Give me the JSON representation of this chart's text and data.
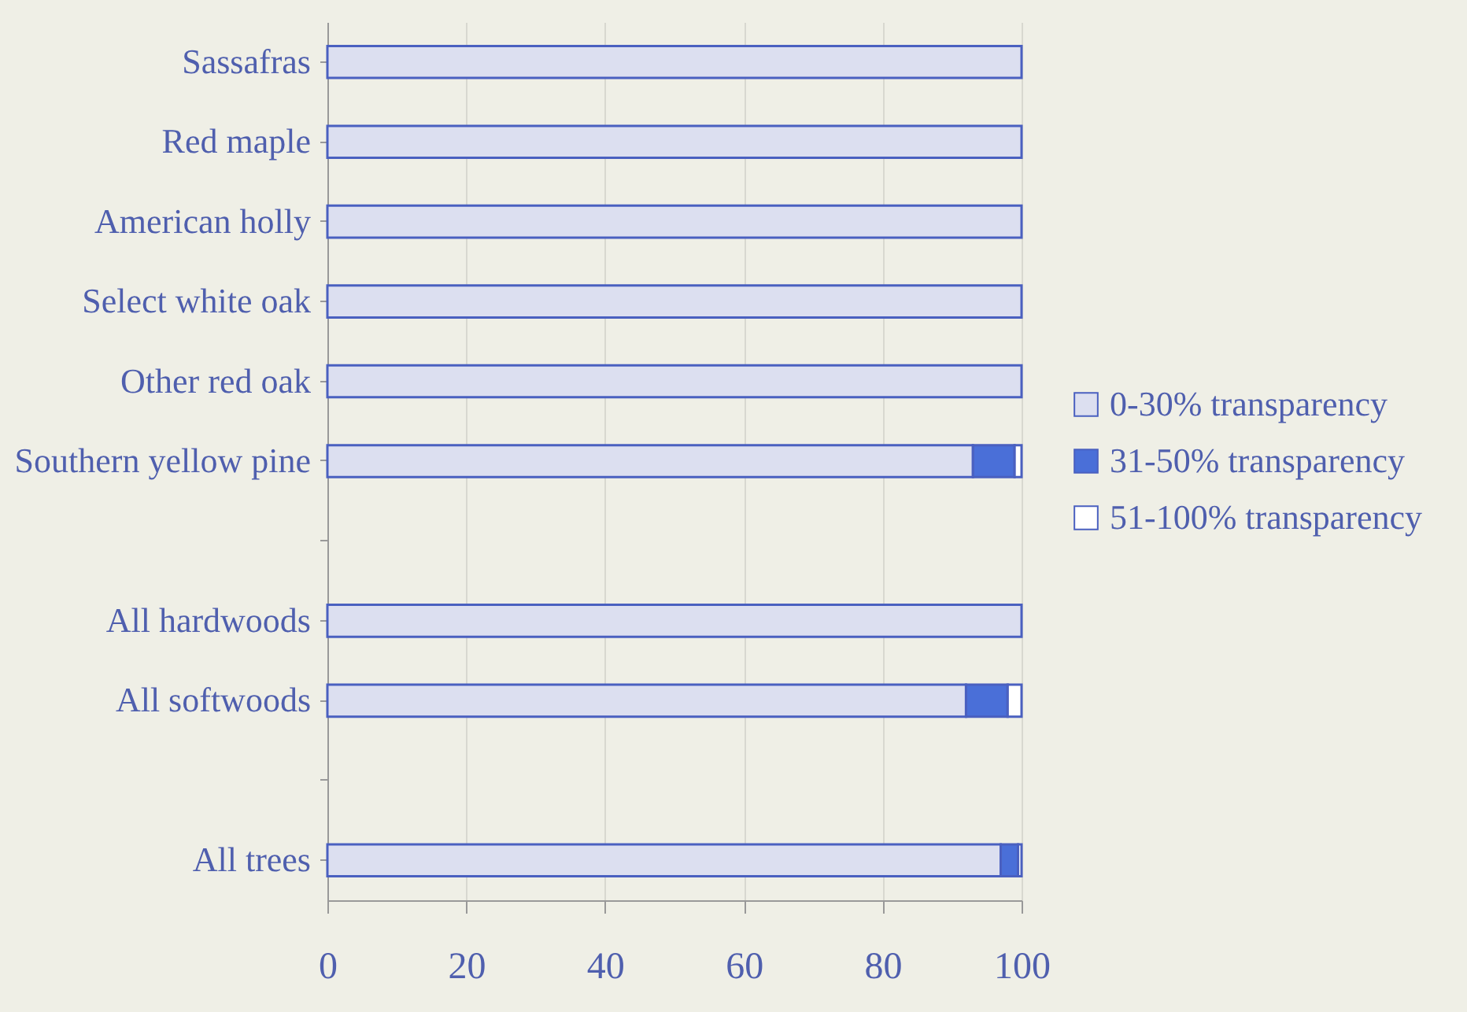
{
  "chart_data": {
    "type": "bar",
    "orientation": "horizontal",
    "stacked": true,
    "categories": [
      "Sassafras",
      "Red maple",
      "American holly",
      "Select white oak",
      "Other red oak",
      "Southern yellow pine",
      null,
      "All hardwoods",
      "All softwoods",
      null,
      "All trees"
    ],
    "series": [
      {
        "name": "0-30% transparency",
        "color": "#dcdff0",
        "values": [
          100,
          100,
          100,
          100,
          100,
          93,
          null,
          100,
          92,
          null,
          97
        ]
      },
      {
        "name": "31-50% transparency",
        "color": "#4a6fd8",
        "values": [
          0,
          0,
          0,
          0,
          0,
          6,
          null,
          0,
          6,
          null,
          2.5
        ]
      },
      {
        "name": "51-100% transparency",
        "color": "#ffffff",
        "values": [
          0,
          0,
          0,
          0,
          0,
          1,
          null,
          0,
          2,
          null,
          0.5
        ]
      }
    ],
    "xlim": [
      0,
      100
    ],
    "xticks": [
      0,
      20,
      40,
      60,
      80,
      100
    ],
    "grid": "x",
    "legend": "right"
  }
}
